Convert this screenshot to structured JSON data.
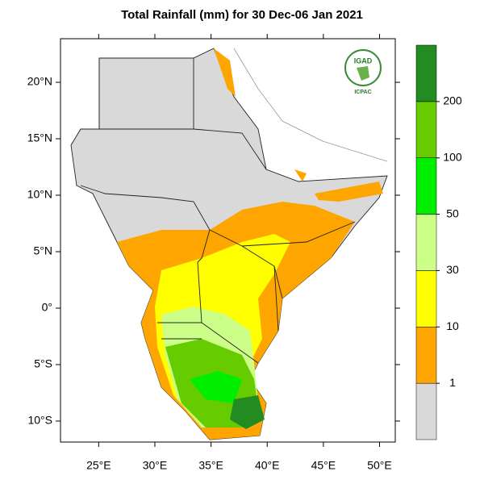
{
  "title": "Total Rainfall (mm) for 30 Dec-06 Jan 2021",
  "map": {
    "lon_range": [
      21.6,
      51.4
    ],
    "lat_range": [
      -11.86,
      23.86
    ],
    "lat_ticks": [
      {
        "value": 20,
        "label": "20°N"
      },
      {
        "value": 15,
        "label": "15°N"
      },
      {
        "value": 10,
        "label": "10°N"
      },
      {
        "value": 5,
        "label": "5°N"
      },
      {
        "value": 0,
        "label": "0°"
      },
      {
        "value": -5,
        "label": "5°S"
      },
      {
        "value": -10,
        "label": "10°S"
      }
    ],
    "lon_ticks": [
      {
        "value": 25,
        "label": "25°E"
      },
      {
        "value": 30,
        "label": "30°E"
      },
      {
        "value": 35,
        "label": "35°E"
      },
      {
        "value": 40,
        "label": "40°E"
      },
      {
        "value": 45,
        "label": "45°E"
      },
      {
        "value": 50,
        "label": "50°E"
      }
    ]
  },
  "colorbar": {
    "levels": [
      1,
      10,
      30,
      50,
      100,
      200
    ],
    "colors": [
      "#d9d9d9",
      "#ffa500",
      "#ffff00",
      "#ccff88",
      "#00ee00",
      "#66cc00",
      "#228b22"
    ]
  },
  "logo": {
    "name": "IGAD",
    "caption": "ICPAC"
  }
}
